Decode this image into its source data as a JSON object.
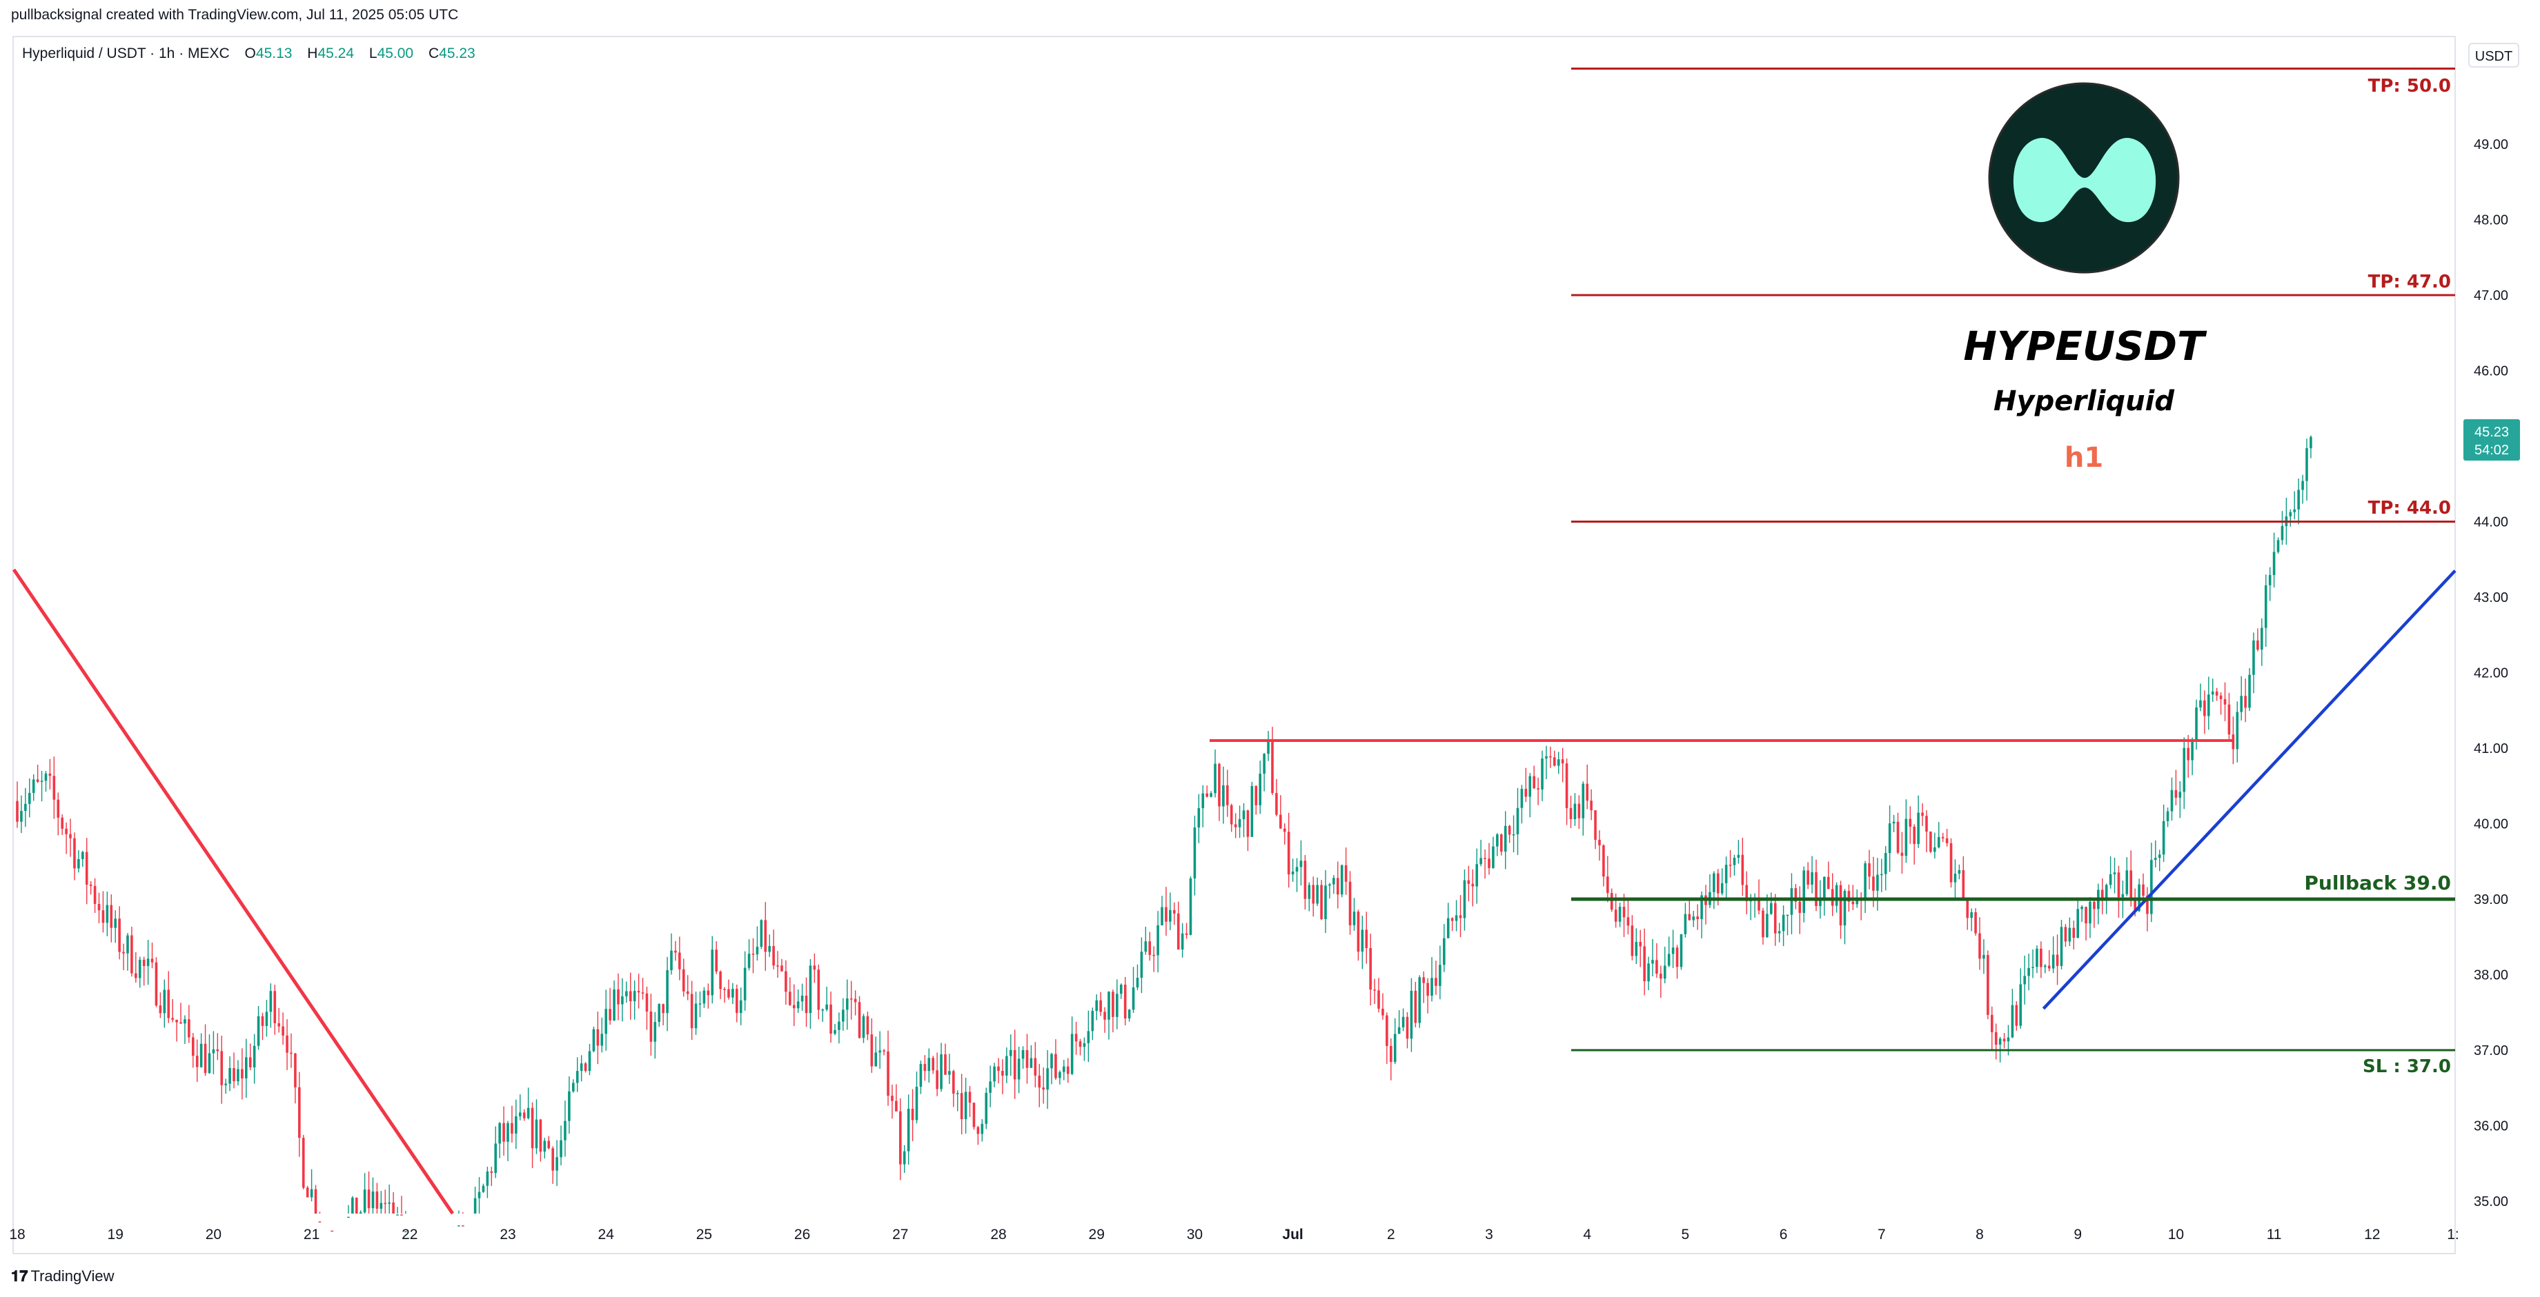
{
  "header": {
    "created_by": "pullbacksignal created with TradingView.com, Jul 11, 2025 05:05 UTC"
  },
  "symbol_line": {
    "name": "Hyperliquid / USDT · 1h · MEXC",
    "open_label": "O",
    "open": "45.13",
    "high_label": "H",
    "high": "45.24",
    "low_label": "L",
    "low": "45.00",
    "close_label": "C",
    "close": "45.23"
  },
  "currency": "USDT",
  "footer": {
    "brand": "TradingView"
  },
  "annotations": {
    "title": "HYPEUSDT",
    "subtitle": "Hyperliquid",
    "timeframe": "h1",
    "tp3": "TP: 50.0",
    "tp2": "TP: 47.0",
    "tp1": "TP: 44.0",
    "pullback": "Pullback 39.0",
    "sl": "SL : 37.0"
  },
  "price_badge": {
    "price": "45.23",
    "countdown": "54:02",
    "color": "#26a69a"
  },
  "colors": {
    "up": "#089981",
    "down": "#f23645",
    "resistance": "#f23645",
    "trend": "#1a3fd1",
    "tp": "#b71c1c",
    "support": "#1b5e20",
    "logo_bg": "#0a2a25",
    "logo_fg": "#97fce4",
    "h1": "#f06a4d"
  },
  "logo": {
    "icon": "hyperliquid-logo"
  },
  "chart_data": {
    "type": "candlestick",
    "timeframe": "1h",
    "y_ticks": [
      "35.00",
      "36.00",
      "37.00",
      "38.00",
      "39.00",
      "40.00",
      "41.00",
      "42.00",
      "43.00",
      "44.00",
      "45.00",
      "46.00",
      "47.00",
      "48.00",
      "49.00"
    ],
    "x_ticks": [
      "18",
      "19",
      "20",
      "21",
      "22",
      "23",
      "24",
      "25",
      "26",
      "27",
      "28",
      "29",
      "30",
      "Jul",
      "2",
      "3",
      "4",
      "5",
      "6",
      "7",
      "8",
      "9",
      "10",
      "11",
      "12",
      "1:"
    ],
    "ylim": [
      34.45,
      50.45
    ],
    "close_path": [
      {
        "t": 18.0,
        "p": 40.3
      },
      {
        "t": 18.3,
        "p": 40.5
      },
      {
        "t": 18.7,
        "p": 39.3
      },
      {
        "t": 19.0,
        "p": 38.5
      },
      {
        "t": 19.4,
        "p": 37.9
      },
      {
        "t": 19.7,
        "p": 37.2
      },
      {
        "t": 20.0,
        "p": 36.8
      },
      {
        "t": 20.2,
        "p": 36.5
      },
      {
        "t": 20.4,
        "p": 37.0
      },
      {
        "t": 20.6,
        "p": 37.7
      },
      {
        "t": 20.75,
        "p": 37.2
      },
      {
        "t": 20.9,
        "p": 35.5
      },
      {
        "t": 21.1,
        "p": 34.7
      },
      {
        "t": 21.3,
        "p": 34.6
      },
      {
        "t": 21.5,
        "p": 34.9
      },
      {
        "t": 21.7,
        "p": 35.0
      },
      {
        "t": 21.9,
        "p": 34.5
      },
      {
        "t": 22.3,
        "p": 34.3
      },
      {
        "t": 22.6,
        "p": 34.5
      },
      {
        "t": 22.9,
        "p": 35.8
      },
      {
        "t": 23.2,
        "p": 36.0
      },
      {
        "t": 23.5,
        "p": 35.6
      },
      {
        "t": 23.75,
        "p": 36.8
      },
      {
        "t": 24.0,
        "p": 37.6
      },
      {
        "t": 24.2,
        "p": 37.9
      },
      {
        "t": 24.5,
        "p": 37.2
      },
      {
        "t": 24.7,
        "p": 38.3
      },
      {
        "t": 24.9,
        "p": 37.3
      },
      {
        "t": 25.1,
        "p": 38.2
      },
      {
        "t": 25.3,
        "p": 37.6
      },
      {
        "t": 25.6,
        "p": 38.5
      },
      {
        "t": 25.9,
        "p": 37.4
      },
      {
        "t": 26.1,
        "p": 37.9
      },
      {
        "t": 26.3,
        "p": 37.3
      },
      {
        "t": 26.5,
        "p": 37.7
      },
      {
        "t": 26.7,
        "p": 37.0
      },
      {
        "t": 26.9,
        "p": 36.6
      },
      {
        "t": 27.0,
        "p": 35.7
      },
      {
        "t": 27.2,
        "p": 36.6
      },
      {
        "t": 27.5,
        "p": 36.7
      },
      {
        "t": 27.75,
        "p": 36.0
      },
      {
        "t": 28.0,
        "p": 36.7
      },
      {
        "t": 28.3,
        "p": 36.8
      },
      {
        "t": 28.6,
        "p": 36.7
      },
      {
        "t": 28.9,
        "p": 37.4
      },
      {
        "t": 29.1,
        "p": 37.7
      },
      {
        "t": 29.3,
        "p": 37.6
      },
      {
        "t": 29.5,
        "p": 38.2
      },
      {
        "t": 29.7,
        "p": 38.8
      },
      {
        "t": 29.9,
        "p": 38.5
      },
      {
        "t": 30.0,
        "p": 39.8
      },
      {
        "t": 30.2,
        "p": 40.8
      },
      {
        "t": 30.35,
        "p": 39.9
      },
      {
        "t": 30.55,
        "p": 40.1
      },
      {
        "t": 30.75,
        "p": 40.9
      },
      {
        "t": 30.9,
        "p": 39.7
      },
      {
        "t": 31.1,
        "p": 39.3
      },
      {
        "t": 31.3,
        "p": 38.9
      },
      {
        "t": 31.5,
        "p": 39.2
      },
      {
        "t": 31.7,
        "p": 38.4
      },
      {
        "t": 31.9,
        "p": 37.3
      },
      {
        "t": 32.0,
        "p": 37.0
      },
      {
        "t": 32.2,
        "p": 37.5
      },
      {
        "t": 32.5,
        "p": 38.2
      },
      {
        "t": 32.7,
        "p": 39.0
      },
      {
        "t": 33.0,
        "p": 39.6
      },
      {
        "t": 33.2,
        "p": 40.0
      },
      {
        "t": 33.5,
        "p": 40.6
      },
      {
        "t": 33.7,
        "p": 40.9
      },
      {
        "t": 33.85,
        "p": 40.1
      },
      {
        "t": 34.0,
        "p": 40.5
      },
      {
        "t": 34.1,
        "p": 39.6
      },
      {
        "t": 34.3,
        "p": 38.7
      },
      {
        "t": 34.55,
        "p": 38.2
      },
      {
        "t": 34.75,
        "p": 37.9
      },
      {
        "t": 35.0,
        "p": 38.6
      },
      {
        "t": 35.3,
        "p": 39.1
      },
      {
        "t": 35.55,
        "p": 39.4
      },
      {
        "t": 35.75,
        "p": 38.6
      },
      {
        "t": 36.0,
        "p": 38.9
      },
      {
        "t": 36.3,
        "p": 39.2
      },
      {
        "t": 36.6,
        "p": 38.9
      },
      {
        "t": 36.9,
        "p": 39.3
      },
      {
        "t": 37.1,
        "p": 39.8
      },
      {
        "t": 37.35,
        "p": 39.9
      },
      {
        "t": 37.6,
        "p": 39.7
      },
      {
        "t": 37.8,
        "p": 39.3
      },
      {
        "t": 38.0,
        "p": 38.4
      },
      {
        "t": 38.1,
        "p": 37.5
      },
      {
        "t": 38.2,
        "p": 37.1
      },
      {
        "t": 38.4,
        "p": 37.6
      },
      {
        "t": 38.6,
        "p": 38.2
      },
      {
        "t": 38.8,
        "p": 38.3
      },
      {
        "t": 39.0,
        "p": 38.7
      },
      {
        "t": 39.25,
        "p": 39.0
      },
      {
        "t": 39.5,
        "p": 39.2
      },
      {
        "t": 39.7,
        "p": 39.0
      },
      {
        "t": 39.8,
        "p": 39.7
      },
      {
        "t": 40.0,
        "p": 40.4
      },
      {
        "t": 40.15,
        "p": 41.1
      },
      {
        "t": 40.35,
        "p": 41.7
      },
      {
        "t": 40.5,
        "p": 41.5
      },
      {
        "t": 40.6,
        "p": 41.1
      },
      {
        "t": 40.75,
        "p": 42.0
      },
      {
        "t": 40.9,
        "p": 42.9
      },
      {
        "t": 41.0,
        "p": 43.4
      },
      {
        "t": 41.15,
        "p": 43.9
      },
      {
        "t": 41.25,
        "p": 44.2
      },
      {
        "t": 41.35,
        "p": 45.0
      },
      {
        "t": 41.4,
        "p": 45.23
      }
    ]
  }
}
